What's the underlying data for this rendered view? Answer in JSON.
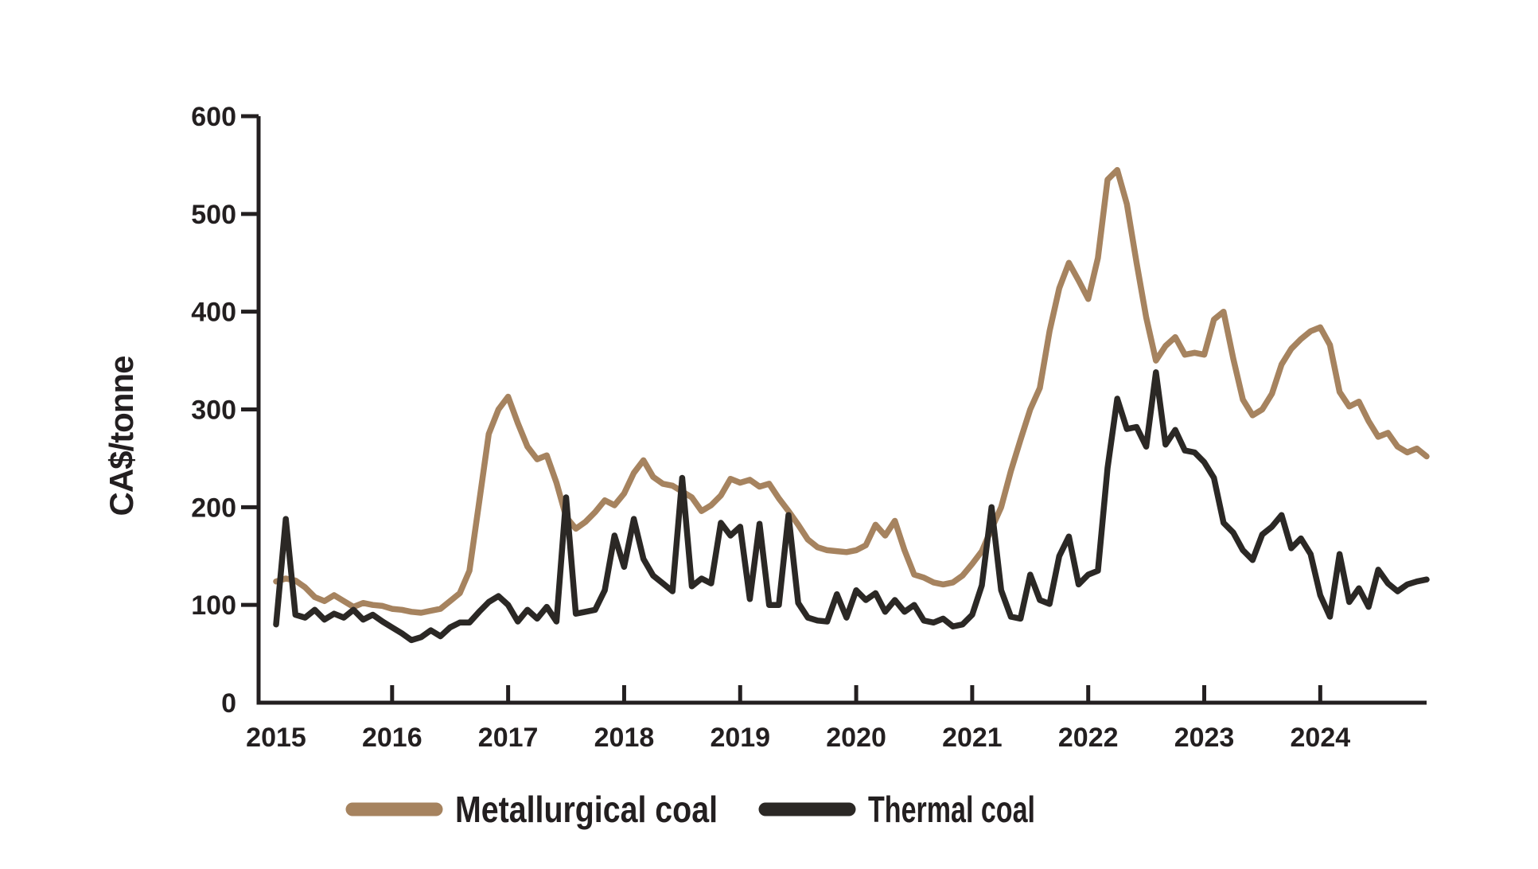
{
  "chart_data": {
    "type": "line",
    "title": "",
    "ylabel": "CA$/tonne",
    "xlabel": "",
    "ylim": [
      0,
      600
    ],
    "yticks": [
      0,
      100,
      200,
      300,
      400,
      500,
      600
    ],
    "ytick_labels": [
      "0",
      "100",
      "200",
      "300",
      "400",
      "500",
      "600"
    ],
    "xtick_labels": [
      "2015",
      "2016",
      "2017",
      "2018",
      "2019",
      "2020",
      "2021",
      "2022",
      "2023",
      "2024"
    ],
    "x_start": "2015-01",
    "x_end": "2024-12",
    "frequency": "monthly",
    "grid": false,
    "legend_position": "bottom",
    "axis_color": "#231F20",
    "background_color": "#FFFFFF",
    "series": [
      {
        "name": "Metallurgical coal",
        "color": "#A6835F",
        "values": [
          124,
          127,
          125,
          118,
          108,
          104,
          110,
          104,
          98,
          102,
          100,
          99,
          96,
          95,
          93,
          92,
          94,
          96,
          104,
          112,
          135,
          205,
          275,
          300,
          313,
          286,
          262,
          249,
          253,
          225,
          190,
          178,
          185,
          195,
          207,
          202,
          214,
          235,
          248,
          231,
          224,
          222,
          216,
          210,
          196,
          202,
          212,
          229,
          225,
          228,
          221,
          224,
          209,
          196,
          182,
          167,
          159,
          156,
          155,
          154,
          156,
          161,
          182,
          171,
          186,
          156,
          131,
          128,
          123,
          121,
          123,
          130,
          142,
          155,
          178,
          200,
          237,
          269,
          300,
          322,
          380,
          424,
          450,
          432,
          413,
          455,
          535,
          545,
          510,
          450,
          394,
          350,
          365,
          374,
          356,
          358,
          356,
          392,
          400,
          352,
          310,
          294,
          300,
          316,
          346,
          362,
          372,
          380,
          384,
          366,
          318,
          303,
          308,
          288,
          272,
          276,
          262,
          256,
          260,
          252
        ]
      },
      {
        "name": "Thermal coal",
        "color": "#2B2825",
        "values": [
          80,
          188,
          90,
          87,
          95,
          85,
          91,
          87,
          95,
          85,
          90,
          83,
          77,
          71,
          64,
          67,
          74,
          68,
          77,
          82,
          82,
          93,
          103,
          109,
          100,
          83,
          95,
          86,
          98,
          83,
          210,
          91,
          93,
          95,
          115,
          171,
          139,
          188,
          147,
          130,
          122,
          114,
          230,
          119,
          127,
          122,
          184,
          171,
          180,
          106,
          183,
          100,
          100,
          192,
          102,
          87,
          84,
          83,
          111,
          87,
          115,
          105,
          112,
          93,
          105,
          93,
          100,
          84,
          82,
          86,
          78,
          80,
          90,
          120,
          200,
          115,
          88,
          86,
          131,
          105,
          101,
          150,
          170,
          121,
          131,
          135,
          240,
          311,
          280,
          282,
          262,
          338,
          264,
          279,
          258,
          256,
          246,
          230,
          184,
          174,
          156,
          146,
          172,
          180,
          192,
          158,
          168,
          152,
          110,
          88,
          152,
          103,
          117,
          98,
          136,
          122,
          114,
          121,
          124,
          126
        ]
      }
    ]
  }
}
